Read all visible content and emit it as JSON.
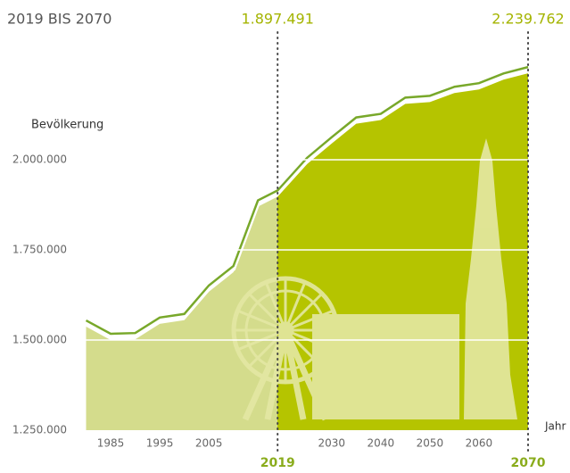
{
  "chart_data": {
    "type": "area",
    "title": "2019 BIS 2070",
    "y_label": "Bevölkerung",
    "x_label": "Jahr",
    "x": [
      1980,
      1985,
      1990,
      1995,
      2000,
      2005,
      2010,
      2015,
      2019,
      2025,
      2030,
      2035,
      2040,
      2045,
      2050,
      2055,
      2060,
      2065,
      2070
    ],
    "series": [
      {
        "colors": [
          "#d4dc8c",
          "#b5c400"
        ],
        "line_color": "#78a82a",
        "values": [
          1537000,
          1500000,
          1502000,
          1545000,
          1555000,
          1634000,
          1688000,
          1870000,
          1897491,
          1988000,
          2045000,
          2100000,
          2110000,
          2155000,
          2160000,
          2185000,
          2195000,
          2222000,
          2239762
        ]
      }
    ],
    "markers": [
      {
        "x": 2019,
        "value": 1897491,
        "label": "1.897.491"
      },
      {
        "x": 2070,
        "value": 2239762,
        "label": "2.239.762"
      }
    ],
    "xlim": [
      1980,
      2070
    ],
    "xticks": [
      1985,
      1995,
      2005,
      2030,
      2040,
      2050,
      2060
    ],
    "ylim": [
      1250000,
      2250000
    ],
    "yticks": [
      {
        "value": 1250000,
        "label": "1.250.000"
      },
      {
        "value": 1500000,
        "label": "1.500.000"
      },
      {
        "value": 1750000,
        "label": "1.750.000"
      },
      {
        "value": 2000000,
        "label": "2.000.000"
      }
    ],
    "grid": true
  }
}
